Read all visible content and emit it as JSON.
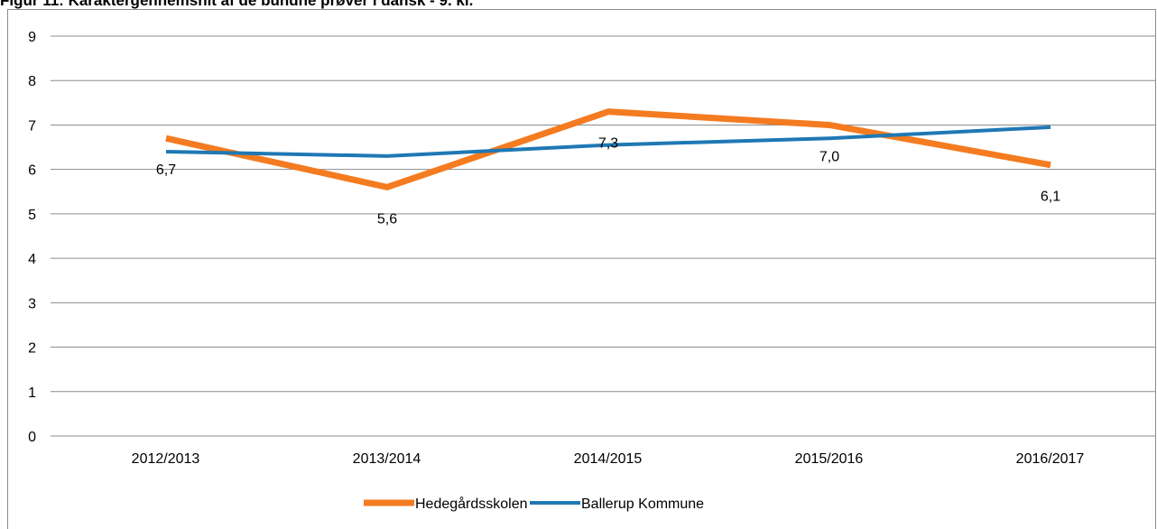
{
  "chart_data": {
    "type": "line",
    "title": "Figur 11: Karaktergennemsnit af de bundne prøver i dansk - 9. kl.",
    "categories": [
      "2012/2013",
      "2013/2014",
      "2014/2015",
      "2015/2016",
      "2016/2017"
    ],
    "series": [
      {
        "name": "Hedegårdsskolen",
        "color": "#f47b20",
        "values": [
          6.7,
          5.6,
          7.3,
          7.0,
          6.1
        ],
        "value_labels": [
          "6,7",
          "5,6",
          "7,3",
          "7,0",
          "6,1"
        ]
      },
      {
        "name": "Ballerup Kommune",
        "color": "#1f78b4",
        "values": [
          6.4,
          6.3,
          6.55,
          6.7,
          6.95
        ]
      }
    ],
    "ylim": [
      0,
      9
    ],
    "yticks": [
      0,
      1,
      2,
      3,
      4,
      5,
      6,
      7,
      8,
      9
    ],
    "grid": true,
    "legend": "bottom"
  }
}
